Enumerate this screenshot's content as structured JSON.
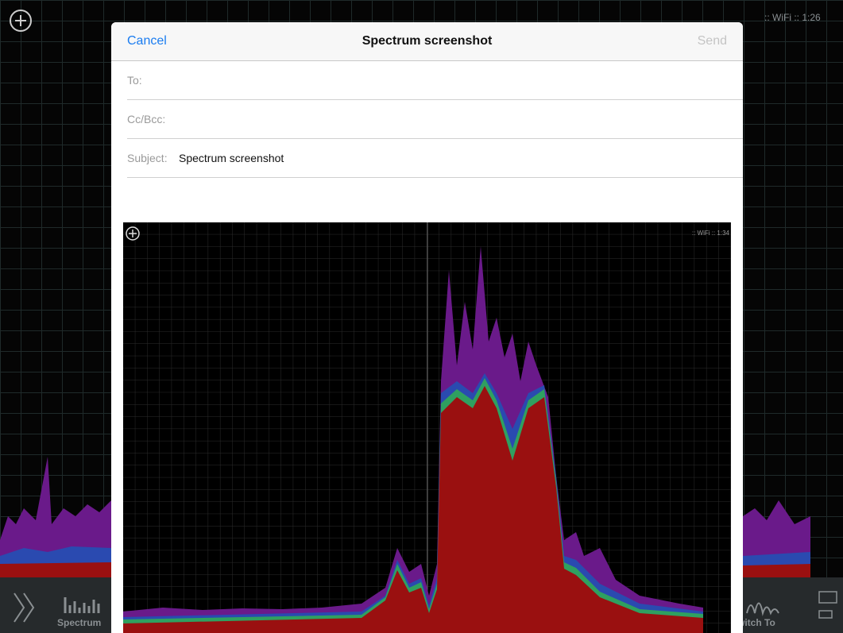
{
  "status": {
    "network_time": ":: WiFi :: 1:26"
  },
  "compose": {
    "cancel": "Cancel",
    "title": "Spectrum screenshot",
    "send": "Send",
    "to_label": "To:",
    "cc_label": "Cc/Bcc:",
    "subject_label": "Subject:",
    "subject": "Spectrum screenshot"
  },
  "attachment": {
    "status": ":: WiFi :: 1:34"
  },
  "toolbar": {
    "left": "Spectrum",
    "right": "Switch To"
  }
}
